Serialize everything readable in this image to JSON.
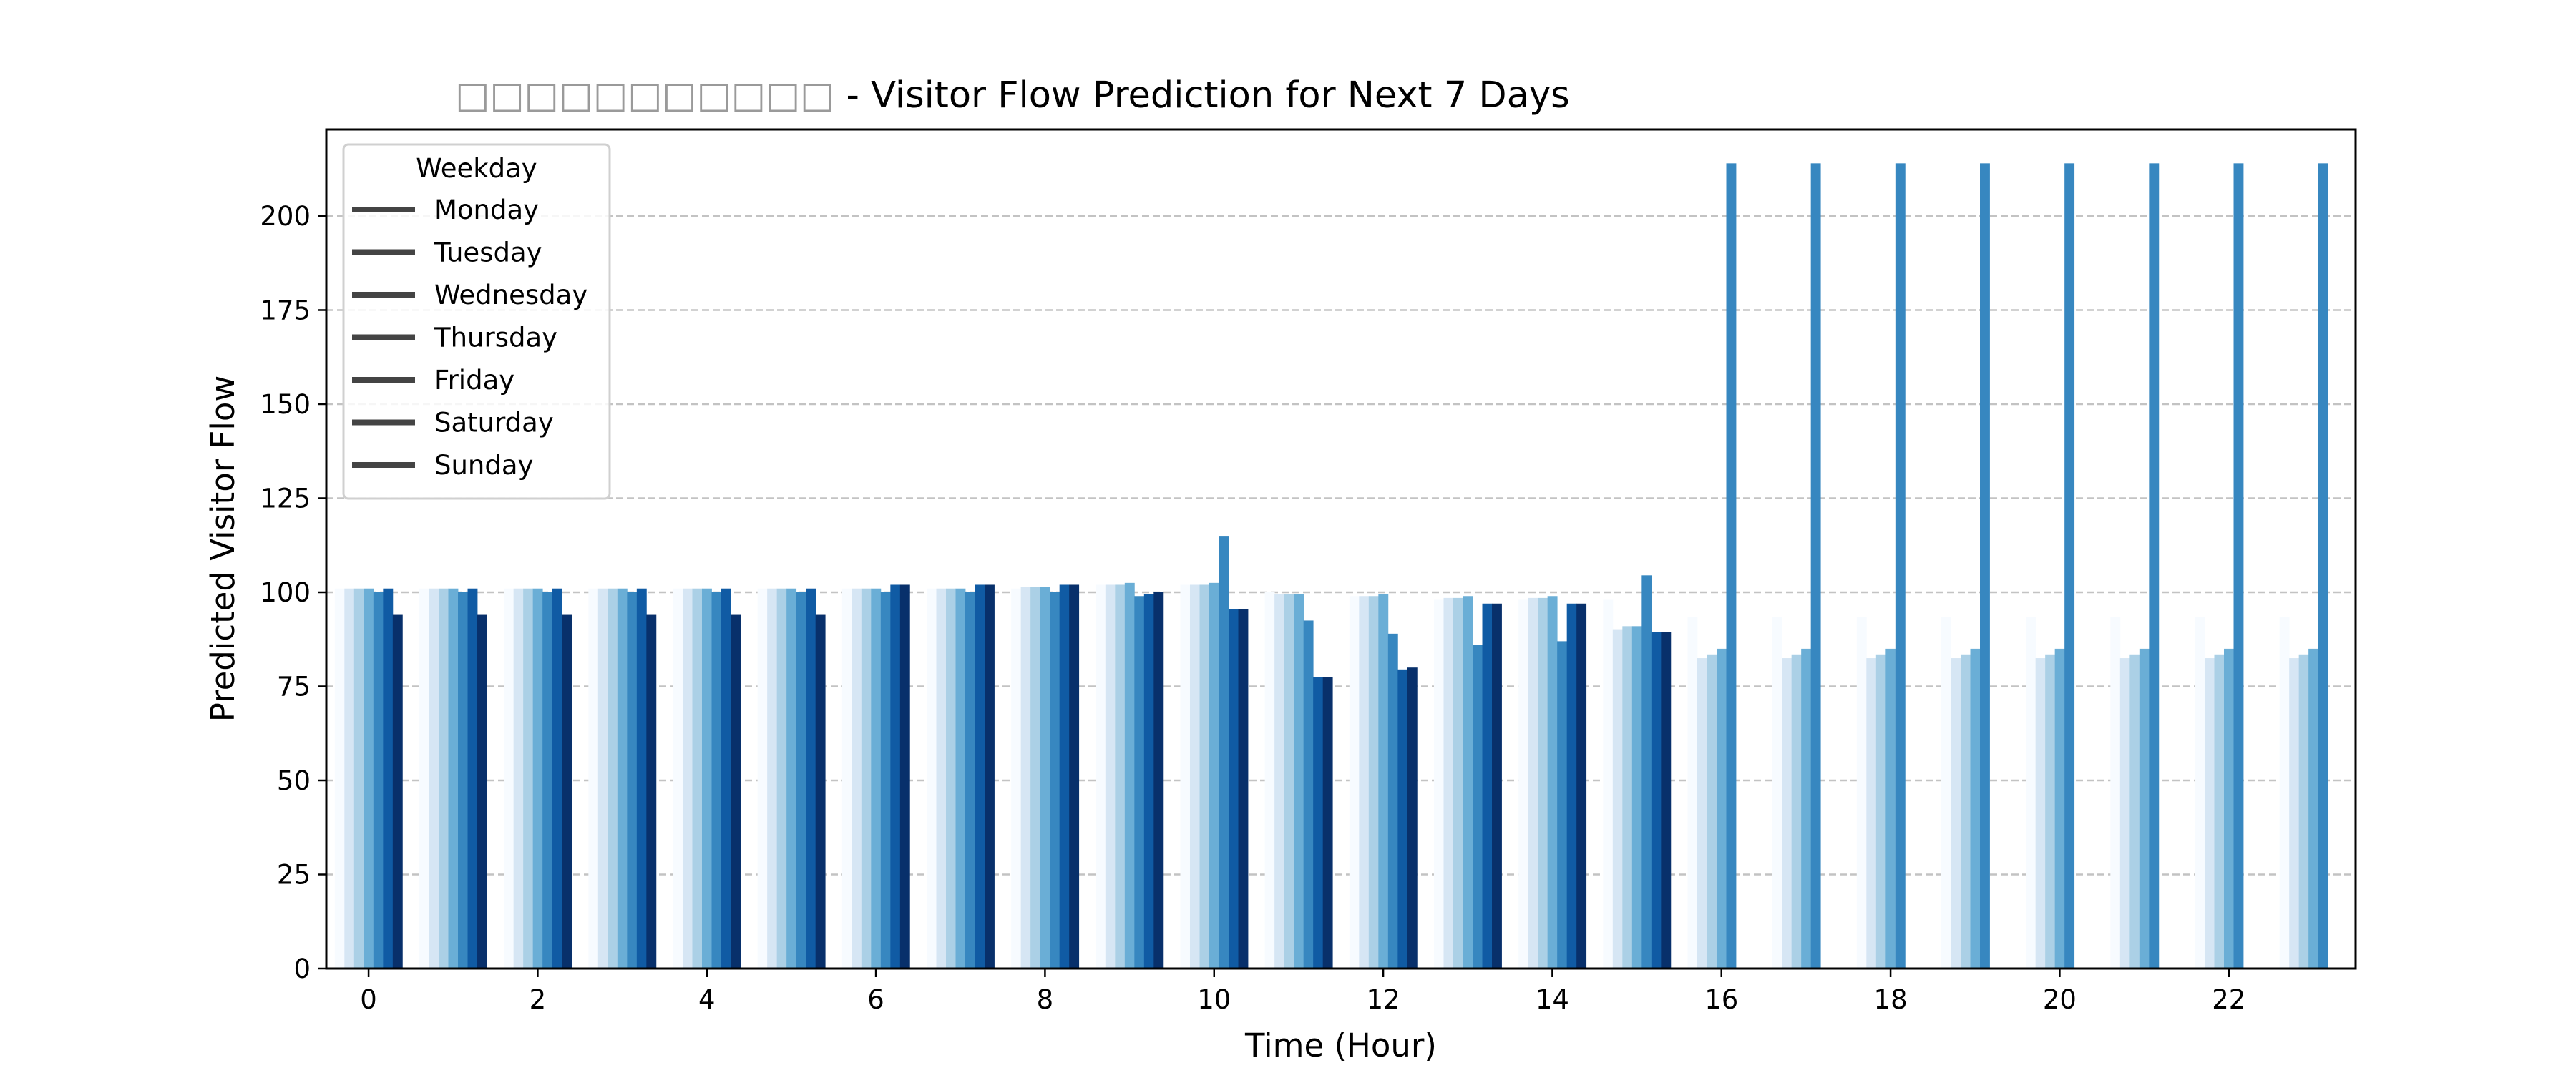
{
  "chart_data": {
    "type": "bar",
    "title": "□□□□□□□□□□□ - Visitor Flow Prediction for Next 7 Days",
    "xlabel": "Time (Hour)",
    "ylabel": "Predicted Visitor Flow",
    "categories": [
      0,
      1,
      2,
      3,
      4,
      5,
      6,
      7,
      8,
      9,
      10,
      11,
      12,
      13,
      14,
      15,
      16,
      17,
      18,
      19,
      20,
      21,
      22,
      23
    ],
    "x_tick_labels": [
      "0",
      "2",
      "4",
      "6",
      "8",
      "10",
      "12",
      "14",
      "16",
      "18",
      "20",
      "22"
    ],
    "y_tick_labels": [
      "0",
      "25",
      "50",
      "75",
      "100",
      "125",
      "150",
      "175",
      "200"
    ],
    "ylim": [
      0,
      223
    ],
    "grid": "y, dashed",
    "legend": {
      "title": "Weekday",
      "placement": "top-left"
    },
    "series": [
      {
        "name": "Monday",
        "color": "#f7fbff",
        "values": [
          101,
          101,
          101,
          101,
          101,
          101,
          101,
          101,
          101,
          102,
          102,
          100,
          99,
          98,
          98,
          98,
          93.5,
          93.5,
          93.5,
          93.5,
          93.5,
          93.5,
          93.5,
          93.5
        ]
      },
      {
        "name": "Tuesday",
        "color": "#d6e6f4",
        "values": [
          101,
          101,
          101,
          101,
          101,
          101,
          101,
          101,
          101.5,
          102,
          102,
          99.5,
          99,
          98.5,
          98.5,
          90,
          82.5,
          82.5,
          82.5,
          82.5,
          82.5,
          82.5,
          82.5,
          82.5
        ]
      },
      {
        "name": "Wednesday",
        "color": "#abd0e6",
        "values": [
          101,
          101,
          101,
          101,
          101,
          101,
          101,
          101,
          101.5,
          102,
          102,
          99.5,
          99,
          98.5,
          98.5,
          91,
          83.5,
          83.5,
          83.5,
          83.5,
          83.5,
          83.5,
          83.5,
          83.5
        ]
      },
      {
        "name": "Thursday",
        "color": "#6aaed6",
        "values": [
          101,
          101,
          101,
          101,
          101,
          101,
          101,
          101,
          101.5,
          102.5,
          102.5,
          99.5,
          99.5,
          99,
          99,
          91,
          85,
          85,
          85,
          85,
          85,
          85,
          85,
          85
        ]
      },
      {
        "name": "Friday",
        "color": "#3787c0",
        "values": [
          100,
          100,
          100,
          100,
          100,
          100,
          100,
          100,
          100,
          99,
          115,
          92.5,
          89,
          86,
          87,
          104.5,
          214,
          214,
          214,
          214,
          214,
          214,
          214,
          214
        ]
      },
      {
        "name": "Saturday",
        "color": "#105ba4",
        "values": [
          101,
          101,
          101,
          101,
          101,
          101,
          102,
          102,
          102,
          99.5,
          95.5,
          77.5,
          79.5,
          97,
          97,
          89.5,
          0,
          0,
          0,
          0,
          0,
          0,
          0,
          0
        ]
      },
      {
        "name": "Sunday",
        "color": "#08306b",
        "values": [
          94,
          94,
          94,
          94,
          94,
          94,
          102,
          102,
          102,
          100,
          95.5,
          77.5,
          80,
          97,
          97,
          89.5,
          0,
          0,
          0,
          0,
          0,
          0,
          0,
          0
        ]
      }
    ]
  }
}
